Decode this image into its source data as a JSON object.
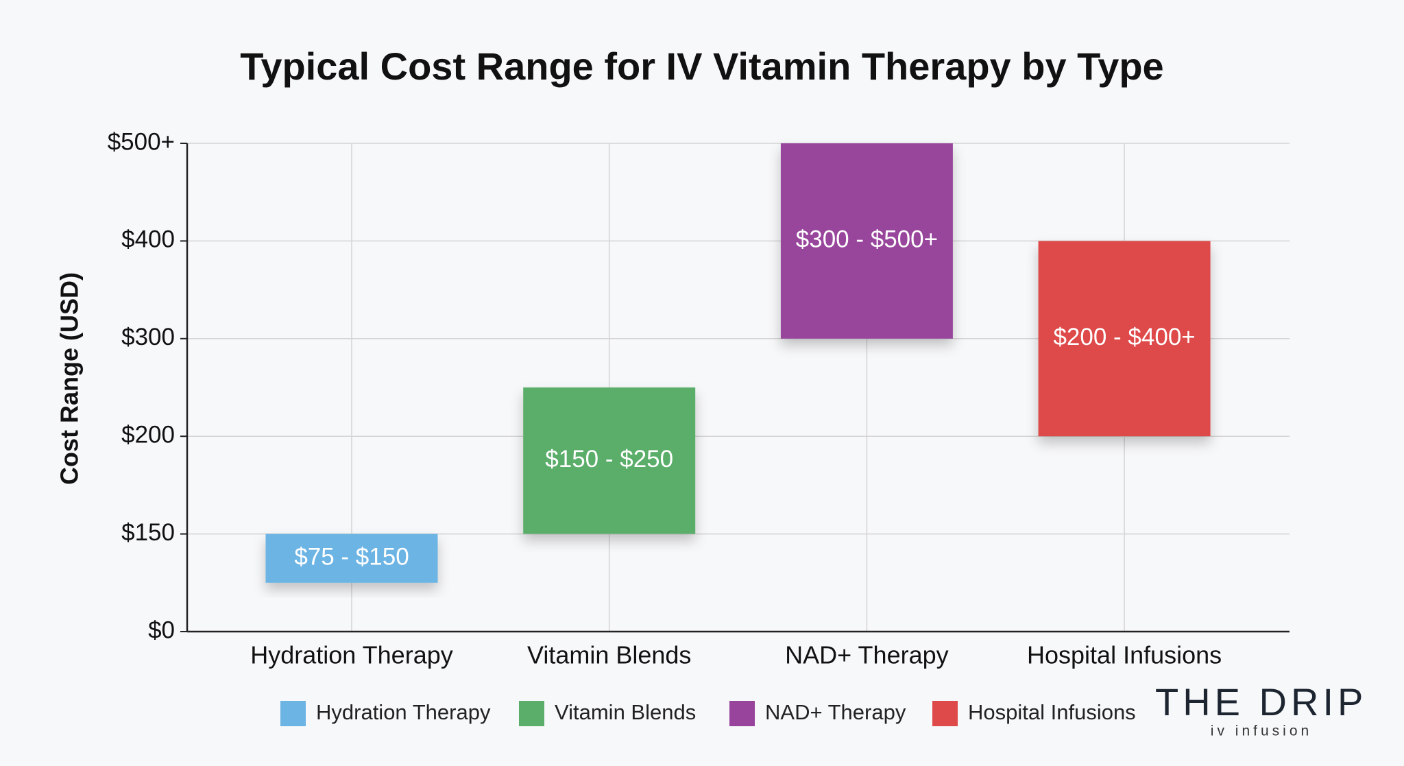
{
  "chart_data": {
    "type": "range-bar",
    "title": "Typical Cost Range for IV Vitamin Therapy by Type",
    "y_label": "Cost Range (USD)",
    "categories": [
      "Hydration Therapy",
      "Vitamin Blends",
      "NAD+ Therapy",
      "Hospital Infusions"
    ],
    "low": [
      75,
      150,
      300,
      200
    ],
    "high": [
      150,
      250,
      500,
      400
    ],
    "value_labels": [
      "$75 - $150",
      "$150 - $250",
      "$300 - $500+",
      "$200 - $400+"
    ],
    "colors": [
      "#6cb4e4",
      "#5aae6a",
      "#98449c",
      "#de4a4a"
    ],
    "ylim": [
      0,
      500
    ],
    "yticks": [
      {
        "value": 0,
        "label": "$0"
      },
      {
        "value": 150,
        "label": "$150"
      },
      {
        "value": 200,
        "label": "$200"
      },
      {
        "value": 300,
        "label": "$300"
      },
      {
        "value": 400,
        "label": "$400"
      },
      {
        "value": 500,
        "label": "$500+"
      }
    ],
    "grid": true,
    "legend": "bottom"
  },
  "logo": {
    "name": "THE DRIP",
    "tagline": "iv infusion"
  }
}
